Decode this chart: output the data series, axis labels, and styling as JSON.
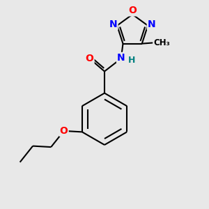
{
  "background_color": "#e8e8e8",
  "bond_color": "#000000",
  "bond_width": 1.5,
  "atom_colors": {
    "O": "#ff0000",
    "N": "#0000ff",
    "H": "#008080",
    "C": "#000000"
  },
  "font_size": 9,
  "figsize": [
    3.0,
    3.0
  ],
  "dpi": 100
}
